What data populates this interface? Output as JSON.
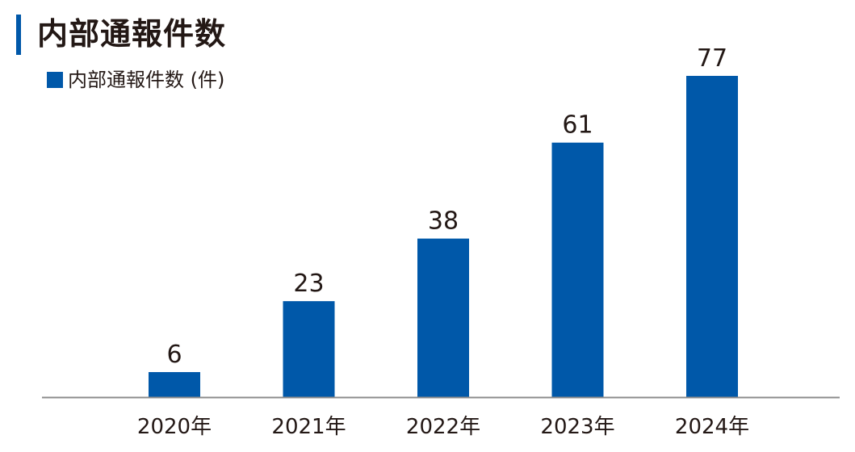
{
  "header": {
    "title": "内部通報件数"
  },
  "legend": {
    "label": "内部通報件数 (件)"
  },
  "colors": {
    "accent": "#0058a9",
    "bar": "#0058a9",
    "axis": "#8c8c8c",
    "text": "#231815"
  },
  "chart_data": {
    "type": "bar",
    "title": "内部通報件数",
    "categories": [
      "2020年",
      "2021年",
      "2022年",
      "2023年",
      "2024年"
    ],
    "series": [
      {
        "name": "内部通報件数 (件)",
        "values": [
          6,
          23,
          38,
          61,
          77
        ]
      }
    ],
    "xlabel": "",
    "ylabel": "",
    "ylim": [
      0,
      77
    ],
    "grid": false,
    "legend_position": "top-left",
    "data_labels": true
  }
}
